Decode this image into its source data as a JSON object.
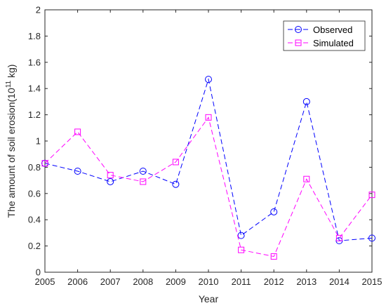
{
  "chart_data": {
    "type": "line",
    "xlabel": "Year",
    "ylabel": {
      "prefix": "The amount of soil erosion(10",
      "exponent": "11",
      "suffix": " kg)"
    },
    "xlim": [
      2005,
      2015
    ],
    "ylim": [
      0,
      2
    ],
    "x_ticks": [
      "2005",
      "2006",
      "2007",
      "2008",
      "2009",
      "2010",
      "2011",
      "2012",
      "2013",
      "2014",
      "2015"
    ],
    "y_ticks": [
      "0",
      "0.2",
      "0.4",
      "0.6",
      "0.8",
      "1",
      "1.2",
      "1.4",
      "1.6",
      "1.8",
      "2"
    ],
    "grid": false,
    "legend_position": "top-right",
    "series": [
      {
        "name": "Observed",
        "color": "#0000ff",
        "marker": "circle",
        "line_style": "dashed",
        "x": [
          2005,
          2006,
          2007,
          2008,
          2009,
          2010,
          2011,
          2012,
          2013,
          2014,
          2015
        ],
        "values": [
          0.83,
          0.77,
          0.69,
          0.77,
          0.67,
          1.47,
          0.28,
          0.46,
          1.3,
          0.24,
          0.26
        ]
      },
      {
        "name": "Simulated",
        "color": "#ff00ff",
        "marker": "square",
        "line_style": "dashed",
        "x": [
          2005,
          2006,
          2007,
          2008,
          2009,
          2010,
          2011,
          2012,
          2013,
          2014,
          2015
        ],
        "values": [
          0.83,
          1.07,
          0.74,
          0.69,
          0.84,
          1.18,
          0.17,
          0.12,
          0.71,
          0.26,
          0.59
        ]
      }
    ]
  }
}
